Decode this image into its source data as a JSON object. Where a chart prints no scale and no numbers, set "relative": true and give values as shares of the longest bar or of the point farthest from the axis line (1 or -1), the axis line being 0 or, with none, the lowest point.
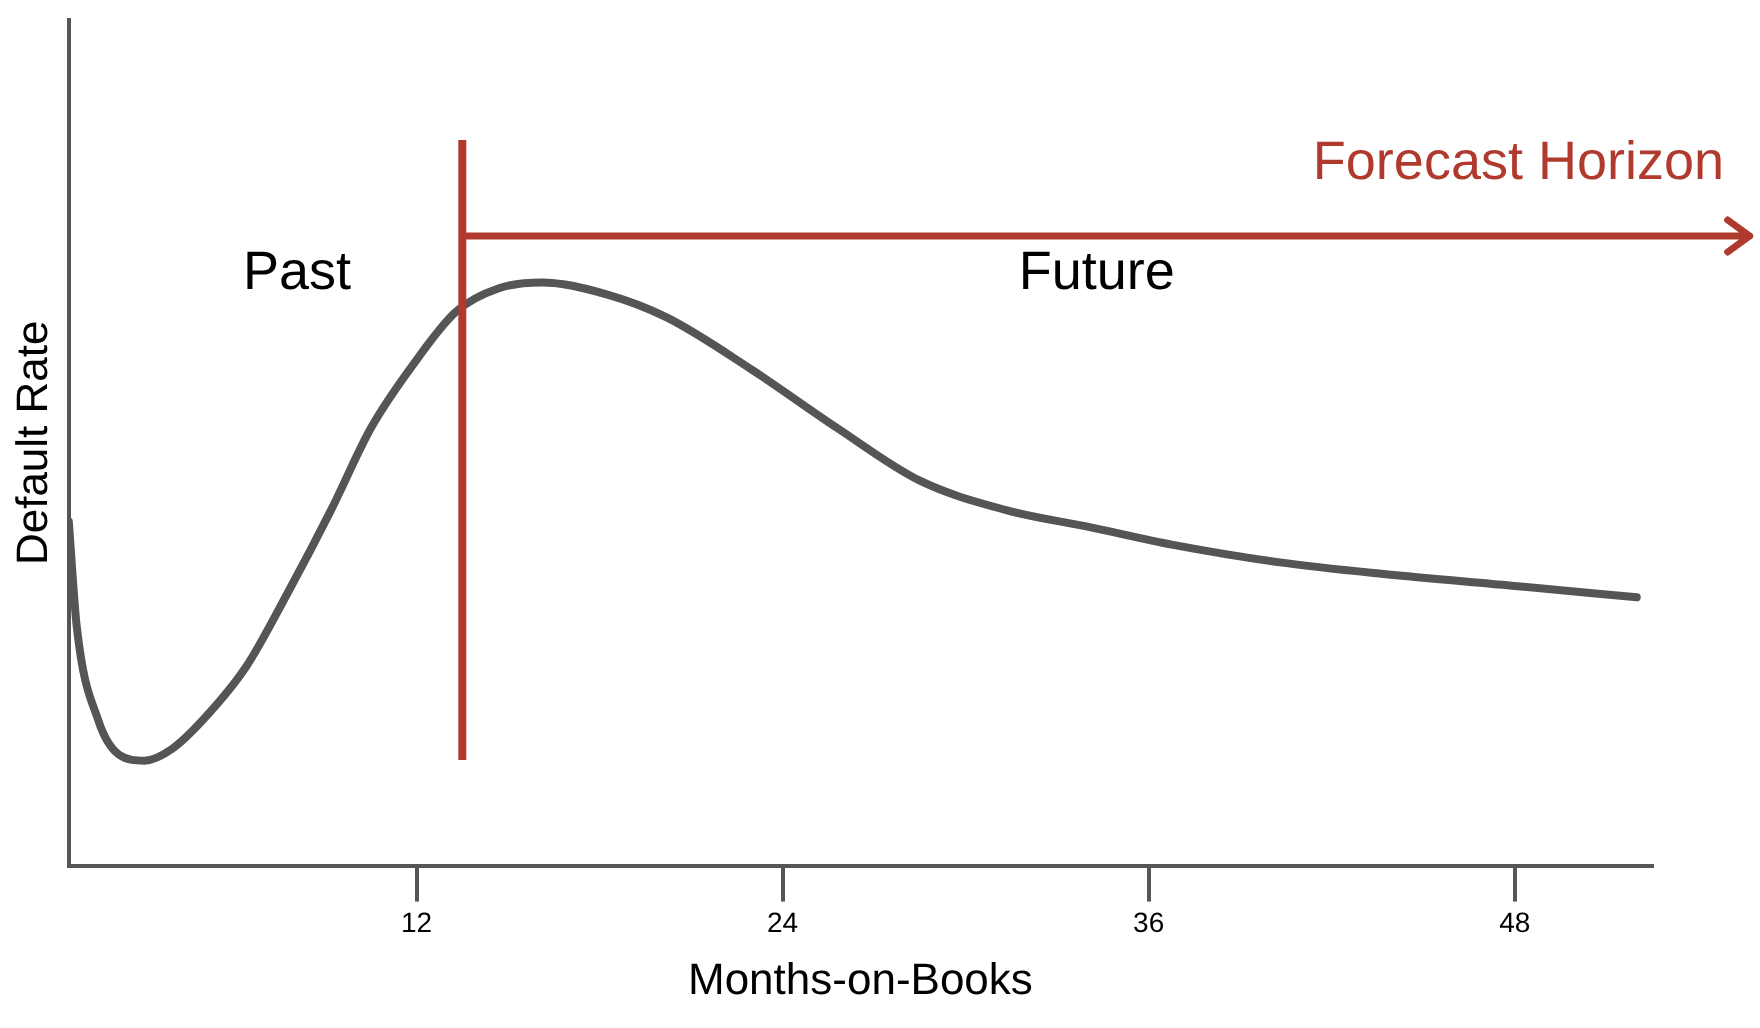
{
  "chart_data": {
    "type": "line",
    "relative": true,
    "xlabel": "Months-on-Books",
    "ylabel": "Default Rate",
    "xlim": [
      0.6,
      52.5
    ],
    "xticks": [
      12,
      24,
      36,
      48
    ],
    "grid": false,
    "legend": false,
    "marker": "none",
    "line_style": "solid",
    "x": [
      0.6,
      0.86,
      1.56,
      2.25,
      3.08,
      3.98,
      5.0,
      6.4,
      7.8,
      9.2,
      10.5,
      11.9,
      13.3,
      14.7,
      16.1,
      18.2,
      20.2,
      23.0,
      25.8,
      28.5,
      31.3,
      34.1,
      36.8,
      40.3,
      43.7,
      47.9,
      52.0
    ],
    "series": [
      {
        "color": "#555555",
        "values": [
          0.59,
          0.41,
          0.25,
          0.19,
          0.18,
          0.2,
          0.25,
          0.34,
          0.47,
          0.61,
          0.75,
          0.86,
          0.95,
          0.99,
          1.0,
          0.98,
          0.94,
          0.85,
          0.75,
          0.66,
          0.61,
          0.58,
          0.55,
          0.52,
          0.5,
          0.48,
          0.46
        ]
      }
    ],
    "ref_lines": [
      {
        "axis": "x",
        "value": 13.5,
        "color": "#b03a2e"
      }
    ],
    "annotations": [
      "Past",
      "Future",
      "Forecast Horizon"
    ]
  }
}
